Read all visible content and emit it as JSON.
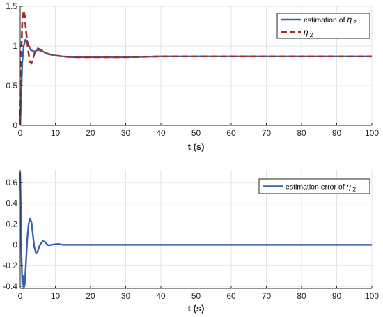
{
  "colors": {
    "estimate": "#3A62B4",
    "truth": "#A0302A",
    "grid": "#E4E4E4",
    "axis": "#262626"
  },
  "chart_data": [
    {
      "type": "line",
      "xlabel": "t (s)",
      "ylabel": "",
      "xlim": [
        0,
        100
      ],
      "ylim": [
        0,
        1.5
      ],
      "xticks": [
        0,
        10,
        20,
        30,
        40,
        50,
        60,
        70,
        80,
        90,
        100
      ],
      "xtick_labels": [
        "0",
        "10",
        "20",
        "30",
        "40",
        "50",
        "60",
        "70",
        "80",
        "90",
        "100"
      ],
      "yticks": [
        0,
        0.5,
        1,
        1.5
      ],
      "ytick_labels": [
        "0",
        "0.5",
        "1",
        "1.5"
      ],
      "grid": true,
      "legend_position": "top-right",
      "series": [
        {
          "name": "estimation of η₂",
          "legend_main": "estimation of ",
          "legend_sym": "η",
          "legend_sub": "2",
          "style": "solid",
          "color": "#3A62B4",
          "x": [
            0,
            0.3,
            0.6,
            1,
            1.5,
            2,
            2.5,
            3,
            4,
            5,
            6,
            7,
            8,
            10,
            12,
            15,
            20,
            25,
            30,
            40,
            50,
            60,
            70,
            80,
            90,
            100
          ],
          "y": [
            0,
            0.4,
            0.8,
            1.0,
            1.08,
            1.06,
            1.0,
            0.95,
            0.93,
            0.95,
            0.94,
            0.92,
            0.9,
            0.88,
            0.87,
            0.86,
            0.86,
            0.86,
            0.86,
            0.87,
            0.87,
            0.87,
            0.87,
            0.87,
            0.87,
            0.87
          ]
        },
        {
          "name": "η₂",
          "legend_main": "",
          "legend_sym": "η",
          "legend_sub": "2",
          "style": "dashed",
          "color": "#A0302A",
          "x": [
            0,
            0.3,
            0.6,
            1,
            1.3,
            1.6,
            2,
            2.4,
            2.8,
            3.2,
            3.6,
            4,
            4.5,
            5,
            6,
            7,
            8,
            10,
            12,
            15,
            20,
            25,
            30,
            40,
            50,
            60,
            70,
            80,
            90,
            100
          ],
          "y": [
            0,
            0.9,
            1.3,
            1.45,
            1.38,
            1.22,
            1.05,
            0.9,
            0.8,
            0.78,
            0.83,
            0.9,
            0.95,
            0.97,
            0.95,
            0.92,
            0.9,
            0.88,
            0.87,
            0.86,
            0.86,
            0.86,
            0.86,
            0.87,
            0.87,
            0.87,
            0.87,
            0.87,
            0.87,
            0.87
          ]
        }
      ]
    },
    {
      "type": "line",
      "xlabel": "t (s)",
      "ylabel": "",
      "xlim": [
        0,
        100
      ],
      "ylim": [
        -0.42,
        0.72
      ],
      "xticks": [
        0,
        10,
        20,
        30,
        40,
        50,
        60,
        70,
        80,
        90,
        100
      ],
      "xtick_labels": [
        "0",
        "10",
        "20",
        "30",
        "40",
        "50",
        "60",
        "70",
        "80",
        "90",
        "100"
      ],
      "yticks": [
        -0.4,
        -0.2,
        0,
        0.2,
        0.4,
        0.6
      ],
      "ytick_labels": [
        "-0.4",
        "-0.2",
        "0",
        "0.2",
        "0.4",
        "0.6"
      ],
      "grid": true,
      "legend_position": "top-right",
      "series": [
        {
          "name": "estimation error of η₂",
          "legend_main": "estimation error of ",
          "legend_sym": "η",
          "legend_sub": "2",
          "style": "solid",
          "color": "#3A62B4",
          "x": [
            0,
            0.2,
            0.4,
            0.6,
            0.8,
            1.0,
            1.3,
            1.6,
            2.0,
            2.4,
            2.8,
            3.2,
            3.6,
            4.0,
            4.5,
            5.0,
            5.5,
            6.0,
            6.5,
            7.0,
            7.5,
            8.0,
            9.0,
            10.0,
            11.0,
            12.0,
            14.0,
            17.0,
            20.0,
            30.0,
            40.0,
            50.0,
            60.0,
            70.0,
            80.0,
            90.0,
            100.0
          ],
          "y": [
            0.7,
            0.3,
            -0.15,
            -0.38,
            -0.3,
            -0.42,
            -0.38,
            -0.2,
            0.05,
            0.2,
            0.25,
            0.22,
            0.1,
            -0.02,
            -0.08,
            -0.06,
            -0.01,
            0.02,
            0.035,
            0.03,
            0.01,
            -0.005,
            0.0,
            0.005,
            0.008,
            0.0,
            0.0,
            0.0,
            0.0,
            0.0,
            0.0,
            0.0,
            0.0,
            0.0,
            0.0,
            0.0,
            0.0
          ]
        }
      ]
    }
  ]
}
